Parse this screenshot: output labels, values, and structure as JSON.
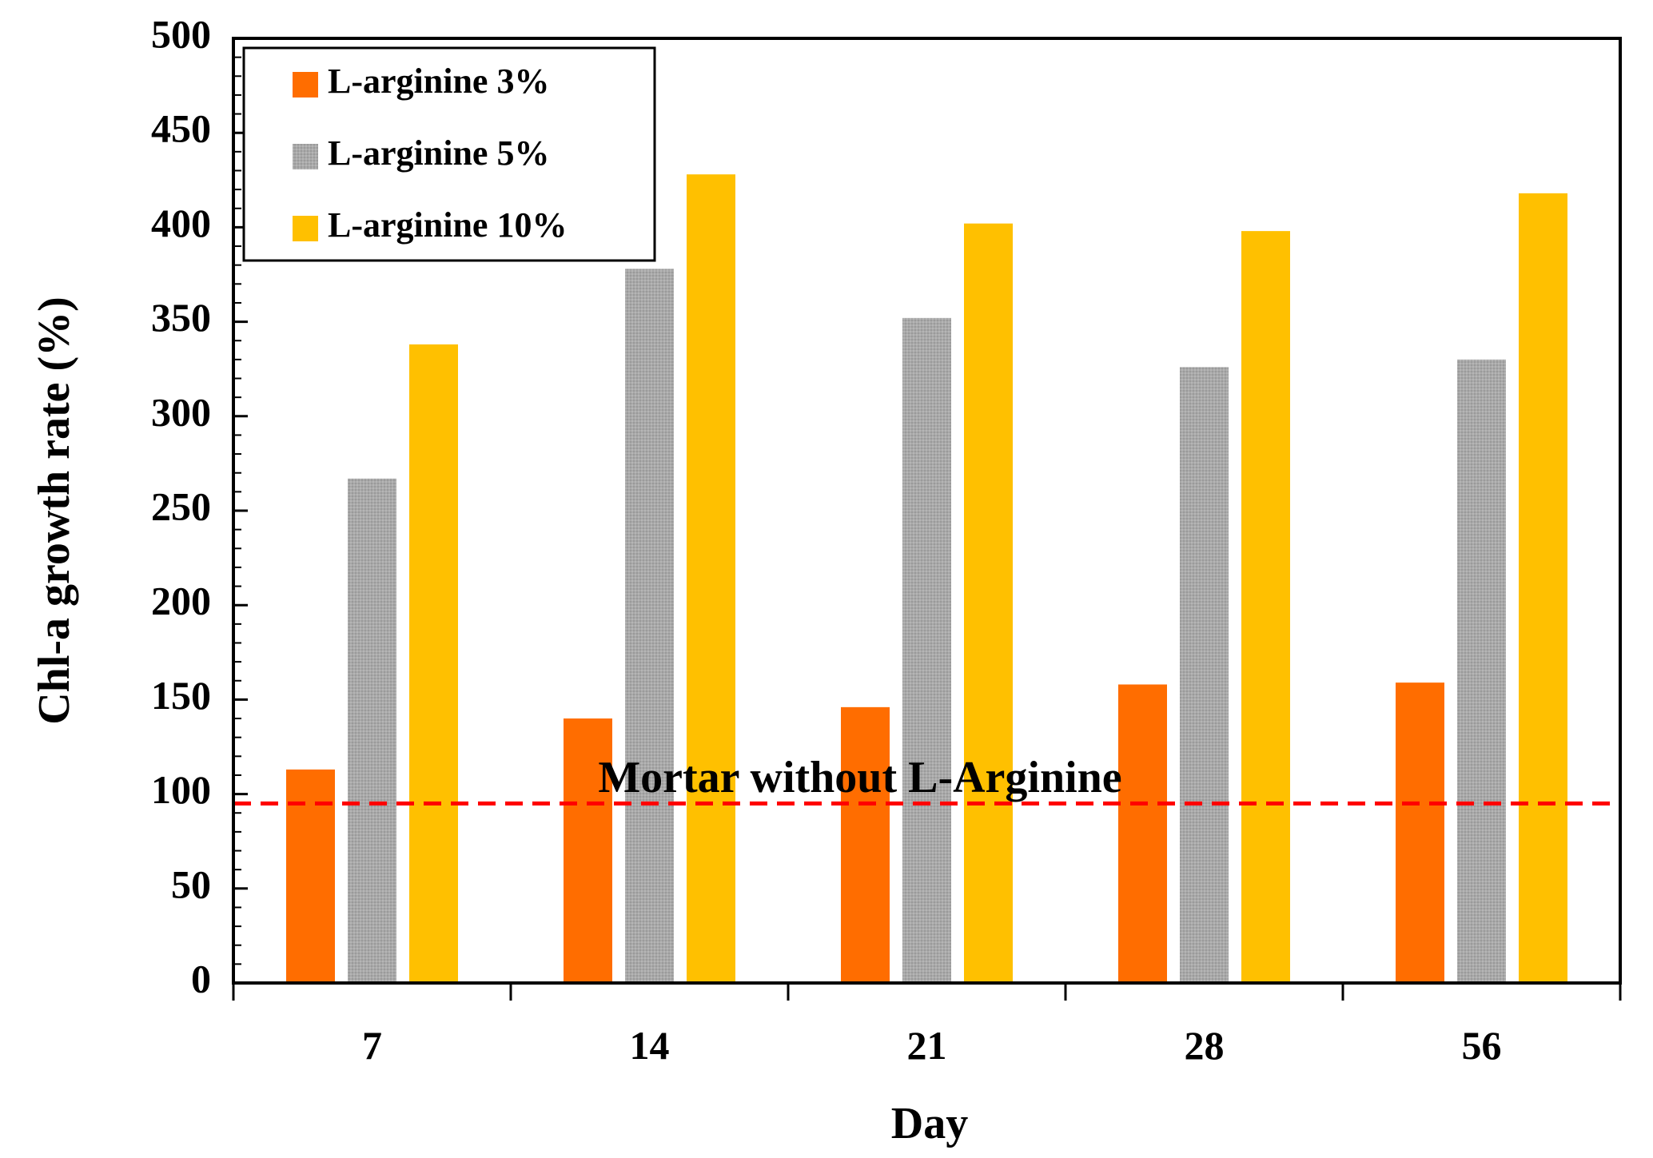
{
  "chart_data": {
    "type": "bar",
    "title": "",
    "xlabel": "Day",
    "ylabel": "Chl-a growth rate (%)",
    "ylim": [
      0,
      500
    ],
    "y_major_step": 50,
    "y_minor_step": 10,
    "grid": false,
    "legend_position": "top-left",
    "categories": [
      "7",
      "14",
      "21",
      "28",
      "56"
    ],
    "series": [
      {
        "name": "L-arginine 3%",
        "color": "#ff6d00",
        "pattern": "solid",
        "values": [
          113,
          140,
          146,
          158,
          159
        ]
      },
      {
        "name": "L-arginine 5%",
        "color": "#a9a9a9",
        "pattern": "dotted",
        "values": [
          267,
          378,
          352,
          326,
          330
        ]
      },
      {
        "name": "L-arginine 10%",
        "color": "#ffc000",
        "pattern": "solid",
        "values": [
          338,
          428,
          402,
          398,
          418
        ]
      }
    ],
    "reference_line": {
      "value": 95,
      "color": "#ff0000",
      "style": "dashed",
      "label": "Mortar without L-Arginine"
    }
  }
}
